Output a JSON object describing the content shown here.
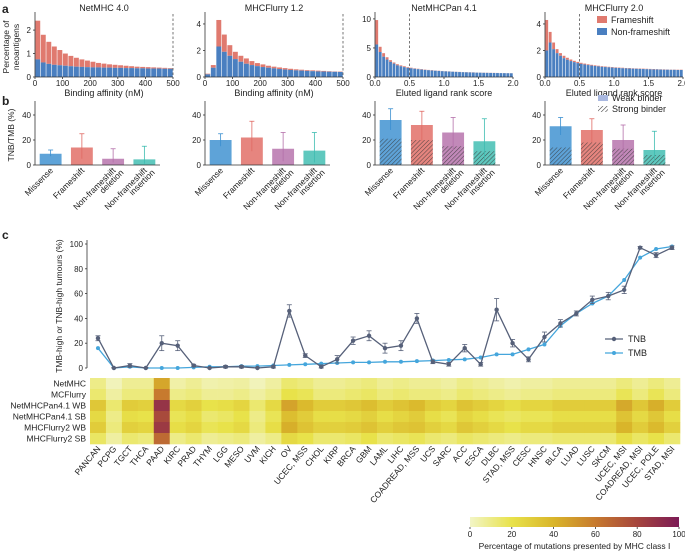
{
  "panels": {
    "a": "a",
    "b": "b",
    "c": "c"
  },
  "colors": {
    "frameshift": "#e07a6f",
    "nonframeshift": "#4a7fc0",
    "tnb": "#566079",
    "tmb": "#45a6dc",
    "missense": "#3a8fd0",
    "fs_bar": "#e06a63",
    "del_bar": "#b46faa",
    "ins_bar": "#3cbcb0"
  },
  "chart_data": [
    {
      "type": "bar",
      "id": "a",
      "ylabel": "Percentage of neoantigens",
      "legend": [
        "Frameshift",
        "Non-frameshift"
      ],
      "legend_position": "top-right of last panel",
      "stacked": true,
      "subplots": [
        {
          "title": "NetMHC 4.0",
          "xlabel": "Binding affinity (nM)",
          "xticks": [
            "0",
            "100",
            "200",
            "300",
            "400",
            "500"
          ],
          "xlim": [
            0,
            500
          ],
          "yticks": [
            "0",
            "1",
            "2"
          ],
          "ylim": [
            0,
            2.6
          ],
          "cutoff": 500,
          "totals": [
            2.4,
            1.8,
            1.5,
            1.3,
            1.15,
            1.0,
            0.9,
            0.82,
            0.75,
            0.7,
            0.65,
            0.6,
            0.57,
            0.54,
            0.52,
            0.5,
            0.48,
            0.46,
            0.44,
            0.43,
            0.42,
            0.41,
            0.4,
            0.39,
            0.38
          ],
          "nonframeshift": [
            0.75,
            0.62,
            0.56,
            0.52,
            0.5,
            0.48,
            0.46,
            0.44,
            0.43,
            0.42,
            0.41,
            0.41,
            0.4,
            0.4,
            0.39,
            0.39,
            0.38,
            0.38,
            0.37,
            0.37,
            0.36,
            0.36,
            0.36,
            0.35,
            0.35
          ]
        },
        {
          "title": "MHCFlurry 1.2",
          "xlabel": "Binding affinity (nM)",
          "xticks": [
            "0",
            "100",
            "200",
            "300",
            "400",
            "500"
          ],
          "xlim": [
            0,
            500
          ],
          "yticks": [
            "0",
            "2",
            "4"
          ],
          "ylim": [
            0,
            4.6
          ],
          "cutoff": 500,
          "totals": [
            0.25,
            0.9,
            4.3,
            3.2,
            2.4,
            1.9,
            1.6,
            1.4,
            1.2,
            1.05,
            0.95,
            0.85,
            0.78,
            0.72,
            0.67,
            0.62,
            0.58,
            0.55,
            0.52,
            0.5,
            0.48,
            0.46,
            0.44,
            0.42,
            0.41
          ],
          "nonframeshift": [
            0.2,
            0.7,
            2.3,
            1.9,
            1.6,
            1.35,
            1.15,
            1.0,
            0.9,
            0.82,
            0.75,
            0.7,
            0.65,
            0.6,
            0.56,
            0.53,
            0.5,
            0.48,
            0.46,
            0.44,
            0.42,
            0.41,
            0.4,
            0.39,
            0.38
          ]
        },
        {
          "title": "NetMHCPan 4.1",
          "xlabel": "Eluted ligand rank score",
          "xticks": [
            "0.0",
            "0.5",
            "1.0",
            "1.5",
            "2.0"
          ],
          "xlim": [
            0,
            2.0
          ],
          "yticks": [
            "0",
            "5",
            "10"
          ],
          "ylim": [
            0,
            10.5
          ],
          "cutoff": 0.5,
          "totals": [
            9.8,
            5.2,
            4.1,
            3.4,
            2.9,
            2.5,
            2.2,
            2.0,
            1.85,
            1.7,
            1.6,
            1.5,
            1.42,
            1.35,
            1.28,
            1.22,
            1.17,
            1.12,
            1.08,
            1.04,
            1.0,
            0.97,
            0.94,
            0.91,
            0.88,
            0.86,
            0.84,
            0.82,
            0.8,
            0.78,
            0.77,
            0.75,
            0.74,
            0.72,
            0.71,
            0.7,
            0.69,
            0.68,
            0.67,
            0.66
          ],
          "nonframeshift": [
            5.6,
            4.3,
            3.5,
            3.0,
            2.6,
            2.3,
            2.0,
            1.85,
            1.7,
            1.58,
            1.5,
            1.42,
            1.35,
            1.28,
            1.22,
            1.17,
            1.12,
            1.08,
            1.04,
            1.0,
            0.97,
            0.94,
            0.91,
            0.88,
            0.85,
            0.83,
            0.81,
            0.79,
            0.77,
            0.75,
            0.74,
            0.72,
            0.71,
            0.7,
            0.69,
            0.68,
            0.67,
            0.66,
            0.65,
            0.64
          ]
        },
        {
          "title": "MHCFlurry 2.0",
          "xlabel": "Eluted ligand rank score",
          "xticks": [
            "0.0",
            "0.5",
            "1.0",
            "1.5",
            "2.0"
          ],
          "xlim": [
            0,
            2.0
          ],
          "yticks": [
            "0",
            "2",
            "4"
          ],
          "ylim": [
            0,
            4.6
          ],
          "cutoff": 0.5,
          "totals": [
            4.3,
            3.4,
            2.6,
            2.1,
            1.8,
            1.6,
            1.45,
            1.32,
            1.22,
            1.14,
            1.07,
            1.01,
            0.96,
            0.92,
            0.88,
            0.85,
            0.82,
            0.79,
            0.77,
            0.75,
            0.73,
            0.71,
            0.7,
            0.68,
            0.67,
            0.66,
            0.65,
            0.64,
            0.63,
            0.62,
            0.61,
            0.6,
            0.59,
            0.58,
            0.58,
            0.57,
            0.56,
            0.56,
            0.55,
            0.55
          ],
          "nonframeshift": [
            2.0,
            2.6,
            2.1,
            1.8,
            1.6,
            1.42,
            1.3,
            1.2,
            1.12,
            1.05,
            0.99,
            0.94,
            0.9,
            0.86,
            0.83,
            0.8,
            0.77,
            0.75,
            0.73,
            0.71,
            0.69,
            0.68,
            0.66,
            0.65,
            0.64,
            0.63,
            0.62,
            0.61,
            0.6,
            0.59,
            0.58,
            0.57,
            0.57,
            0.56,
            0.55,
            0.55,
            0.54,
            0.54,
            0.53,
            0.53
          ]
        }
      ]
    },
    {
      "type": "bar",
      "id": "b",
      "ylabel": "TNB/TMB (%)",
      "categories": [
        "Missense",
        "Frameshift",
        "Non-frameshift deletion",
        "Non-frameshift insertion"
      ],
      "category_lines": [
        [
          "Missense"
        ],
        [
          "Frameshift"
        ],
        [
          "Non-frameshift",
          "deletion"
        ],
        [
          "Non-frameshift",
          "insertion"
        ]
      ],
      "legend": [
        "Weak binder",
        "Strong binder"
      ],
      "legend_position": "top-right of last panel",
      "yticks": [
        "0",
        "20",
        "40"
      ],
      "ylim": [
        0,
        48
      ],
      "subplots": [
        {
          "values": [
            9,
            14,
            5,
            4.5
          ],
          "err_hi": [
            12,
            25,
            13,
            15
          ],
          "err_lo": [
            7,
            5,
            2,
            1
          ],
          "strong": null
        },
        {
          "values": [
            20,
            22,
            13,
            11.5
          ],
          "err_hi": [
            25,
            35,
            26,
            26
          ],
          "err_lo": [
            15,
            11,
            3,
            2
          ],
          "strong": null
        },
        {
          "values": [
            36,
            32,
            26,
            19
          ],
          "err_hi": [
            45,
            43,
            38,
            37
          ],
          "err_lo": [
            28,
            19,
            12,
            4
          ],
          "strong": [
            21,
            20,
            15,
            11
          ]
        },
        {
          "values": [
            31,
            28,
            20,
            12
          ],
          "err_hi": [
            38,
            37,
            32,
            27
          ],
          "err_lo": [
            24,
            18,
            7,
            3
          ],
          "strong": [
            14,
            18,
            13,
            8
          ]
        }
      ]
    },
    {
      "type": "line",
      "id": "c",
      "ylabel": "TMB-high or TNB-high tumours (%)",
      "yticks": [
        "0",
        "20",
        "40",
        "60",
        "80",
        "100"
      ],
      "ylim": [
        0,
        100
      ],
      "legend_position": "right",
      "categories": [
        "PANCAN",
        "PCPG",
        "TGCT",
        "THCA",
        "PAAD",
        "KIRC",
        "PRAD",
        "THYM",
        "LGG",
        "MESO",
        "UVM",
        "KICH",
        "OV",
        "UCEC, MSS",
        "CHOL",
        "KIRP",
        "BRCA",
        "GBM",
        "LAML",
        "LIHC",
        "COADREAD, MSS",
        "UCS",
        "SARC",
        "ACC",
        "ESCA",
        "DLBC",
        "STAD, MSS",
        "CESC",
        "HNSC",
        "BLCA",
        "LUAD",
        "LUSC",
        "SKCM",
        "UCEC, MSI",
        "COADREAD, MSI",
        "UCEC, POLE",
        "STAD, MSI"
      ],
      "series": [
        {
          "name": "TNB",
          "values": [
            24,
            0,
            2,
            0,
            20,
            18,
            2,
            0,
            1,
            1,
            0,
            1,
            46,
            10,
            1,
            7,
            22,
            26,
            16,
            18,
            40,
            5,
            3,
            16,
            3,
            47,
            20,
            7,
            25,
            36,
            44,
            55,
            58,
            63,
            97,
            91,
            97
          ],
          "err": [
            2,
            0.5,
            1.5,
            0.5,
            6,
            4,
            1,
            0.5,
            1,
            1,
            0.5,
            1,
            5,
            1.5,
            1.5,
            3,
            3,
            4,
            4,
            4,
            4,
            1.5,
            1.5,
            3,
            1.5,
            9,
            3,
            2,
            4,
            3,
            2,
            3,
            3,
            3,
            1,
            2,
            1.5
          ]
        },
        {
          "name": "TMB",
          "values": [
            16,
            0,
            1,
            0,
            0,
            0,
            0.5,
            1,
            1,
            1.5,
            1.5,
            2,
            2.5,
            3,
            3.5,
            4,
            4.5,
            4.5,
            5,
            5,
            5.5,
            6,
            6.5,
            7,
            8.5,
            11,
            11,
            15,
            19,
            34,
            44,
            52,
            58,
            71,
            89,
            96,
            98
          ]
        }
      ]
    },
    {
      "type": "heatmap",
      "id": "c-heatmap",
      "rows": [
        "NetMHC",
        "MCFlurry",
        "NetMHCPan4.1 WB",
        "NetMHCPan4.1 SB",
        "MHCFlurry2 WB",
        "MHCFlurry2 SB"
      ],
      "columns_note": "same categories as panel c line chart",
      "colorbar": {
        "label": "Percentage of mutations presented by MHC class I",
        "ticks": [
          "0",
          "20",
          "40",
          "60",
          "80",
          "100"
        ],
        "range": [
          0,
          100
        ]
      },
      "values": [
        [
          10,
          2,
          8,
          8,
          45,
          5,
          8,
          4,
          5,
          6,
          2,
          6,
          14,
          12,
          8,
          8,
          10,
          12,
          8,
          10,
          8,
          8,
          6,
          10,
          8,
          6,
          4,
          6,
          6,
          8,
          8,
          8,
          8,
          12,
          8,
          12,
          8
        ],
        [
          14,
          6,
          12,
          12,
          60,
          10,
          12,
          8,
          8,
          10,
          6,
          10,
          20,
          18,
          12,
          12,
          14,
          16,
          12,
          14,
          12,
          12,
          10,
          14,
          12,
          10,
          8,
          10,
          10,
          12,
          12,
          12,
          12,
          18,
          12,
          18,
          12
        ],
        [
          32,
          14,
          30,
          28,
          88,
          24,
          28,
          20,
          22,
          26,
          14,
          24,
          46,
          38,
          30,
          30,
          32,
          36,
          30,
          34,
          38,
          30,
          26,
          34,
          30,
          26,
          22,
          26,
          26,
          30,
          30,
          30,
          30,
          44,
          32,
          42,
          30
        ],
        [
          24,
          10,
          22,
          20,
          78,
          18,
          22,
          14,
          16,
          20,
          10,
          18,
          36,
          30,
          22,
          22,
          24,
          28,
          22,
          26,
          30,
          22,
          18,
          26,
          22,
          18,
          16,
          18,
          18,
          22,
          22,
          22,
          22,
          34,
          24,
          32,
          22
        ],
        [
          30,
          12,
          28,
          26,
          85,
          22,
          26,
          18,
          20,
          24,
          12,
          22,
          42,
          34,
          28,
          28,
          30,
          34,
          28,
          32,
          34,
          28,
          24,
          32,
          28,
          24,
          20,
          24,
          24,
          28,
          28,
          28,
          28,
          40,
          30,
          38,
          28
        ],
        [
          16,
          6,
          14,
          12,
          66,
          10,
          14,
          8,
          10,
          12,
          6,
          10,
          24,
          20,
          14,
          14,
          16,
          20,
          14,
          16,
          18,
          14,
          12,
          16,
          14,
          12,
          10,
          12,
          12,
          14,
          14,
          14,
          14,
          22,
          16,
          20,
          14
        ]
      ]
    }
  ]
}
